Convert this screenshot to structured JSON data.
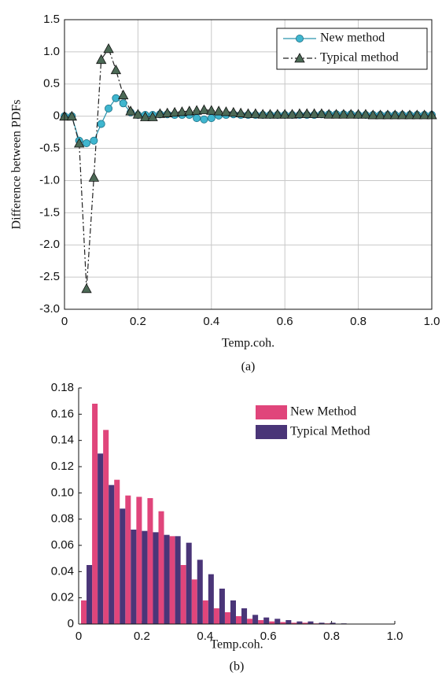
{
  "chart_data": [
    {
      "type": "line",
      "caption": "(a)",
      "x_label": "Temp.coh.",
      "y_label": "Difference between PDFs",
      "xlim": [
        0,
        1
      ],
      "ylim": [
        -3,
        1.5
      ],
      "xticks": [
        0,
        0.2,
        0.4,
        0.6,
        0.8,
        {
          "value": 1,
          "label": "1.0"
        }
      ],
      "yticks": [
        {
          "value": -3,
          "label": "-3.0"
        },
        -2.5,
        {
          "value": -2,
          "label": "-2.0"
        },
        -1.5,
        {
          "value": -1,
          "label": "-1.0"
        },
        -0.5,
        0,
        0.5,
        {
          "value": 1,
          "label": "1.0"
        },
        1.5
      ],
      "grid": true,
      "legend": "upper right",
      "x": [
        0,
        0.02,
        0.04,
        0.06,
        0.08,
        0.1,
        0.12,
        0.14,
        0.16,
        0.18,
        0.2,
        0.22,
        0.24,
        0.26,
        0.28,
        0.3,
        0.32,
        0.34,
        0.36,
        0.38,
        0.4,
        0.42,
        0.44,
        0.46,
        0.48,
        0.5,
        0.52,
        0.54,
        0.56,
        0.58,
        0.6,
        0.62,
        0.64,
        0.66,
        0.68,
        0.7,
        0.72,
        0.74,
        0.76,
        0.78,
        0.8,
        0.82,
        0.84,
        0.86,
        0.88,
        0.9,
        0.92,
        0.94,
        0.96,
        0.98,
        1
      ],
      "series": [
        {
          "name": "New method",
          "color": "#2a93ad",
          "marker_color": "#3fb6cf",
          "marker": "circle",
          "line_style": "solid",
          "values": [
            0,
            0,
            -0.38,
            -0.42,
            -0.38,
            -0.12,
            0.12,
            0.28,
            0.2,
            0.06,
            0.02,
            0.02,
            0.02,
            0.03,
            0.03,
            0.02,
            0.02,
            0.02,
            -0.03,
            -0.05,
            -0.03,
            0.01,
            0.02,
            0.03,
            0.02,
            0.02,
            0.02,
            0.02,
            0.02,
            0.02,
            0.02,
            0.02,
            0.02,
            0.02,
            0.02,
            0.03,
            0.03,
            0.03,
            0.03,
            0.03,
            0.02,
            0.02,
            0.02,
            0.02,
            0.02,
            0.02,
            0.02,
            0.02,
            0.02,
            0.02,
            0.02
          ]
        },
        {
          "name": "Typical method",
          "color": "#222222",
          "marker_color": "#4c6a56",
          "marker": "triangle",
          "line_style": "dashdot",
          "values": [
            0,
            0,
            -0.42,
            -2.68,
            -0.95,
            0.88,
            1.05,
            0.72,
            0.33,
            0.08,
            0.03,
            -0.01,
            -0.01,
            0.04,
            0.05,
            0.06,
            0.07,
            0.08,
            0.09,
            0.1,
            0.09,
            0.08,
            0.07,
            0.06,
            0.05,
            0.04,
            0.04,
            0.03,
            0.03,
            0.03,
            0.03,
            0.03,
            0.04,
            0.04,
            0.04,
            0.04,
            0.03,
            0.03,
            0.03,
            0.03,
            0.03,
            0.03,
            0.02,
            0.02,
            0.02,
            0.02,
            0.02,
            0.02,
            0.02,
            0.02,
            0.02
          ]
        }
      ]
    },
    {
      "type": "bar",
      "caption": "(b)",
      "x_label": "Temp.coh.",
      "xlim": [
        0,
        1
      ],
      "ylim": [
        0,
        0.18
      ],
      "xticks": [
        0,
        0.2,
        0.4,
        0.6,
        0.8,
        {
          "value": 1,
          "label": "1.0"
        }
      ],
      "yticks": [
        0,
        0.02,
        0.04,
        0.06,
        0.08,
        {
          "value": 0.1,
          "label": "0.10"
        },
        0.12,
        0.14,
        0.16,
        0.18
      ],
      "grid": false,
      "legend": "upper right",
      "x": [
        0.025,
        0.06,
        0.095,
        0.13,
        0.165,
        0.2,
        0.235,
        0.27,
        0.305,
        0.34,
        0.375,
        0.41,
        0.445,
        0.48,
        0.515,
        0.55,
        0.585,
        0.62,
        0.655,
        0.69,
        0.725,
        0.76,
        0.795,
        0.83
      ],
      "series": [
        {
          "name": "New Method",
          "color": "#e0457b",
          "values": [
            0.018,
            0.168,
            0.148,
            0.11,
            0.098,
            0.097,
            0.096,
            0.086,
            0.067,
            0.045,
            0.034,
            0.018,
            0.012,
            0.009,
            0.006,
            0.004,
            0.003,
            0.002,
            0.0015,
            0.001,
            0.001,
            0.0005,
            0.0005,
            0.0003
          ]
        },
        {
          "name": "Typical Method",
          "color": "#4a3578",
          "values": [
            0.045,
            0.13,
            0.106,
            0.088,
            0.072,
            0.071,
            0.07,
            0.068,
            0.067,
            0.062,
            0.049,
            0.038,
            0.027,
            0.018,
            0.012,
            0.007,
            0.005,
            0.004,
            0.003,
            0.002,
            0.002,
            0.001,
            0.001,
            0.0005
          ]
        }
      ]
    }
  ]
}
